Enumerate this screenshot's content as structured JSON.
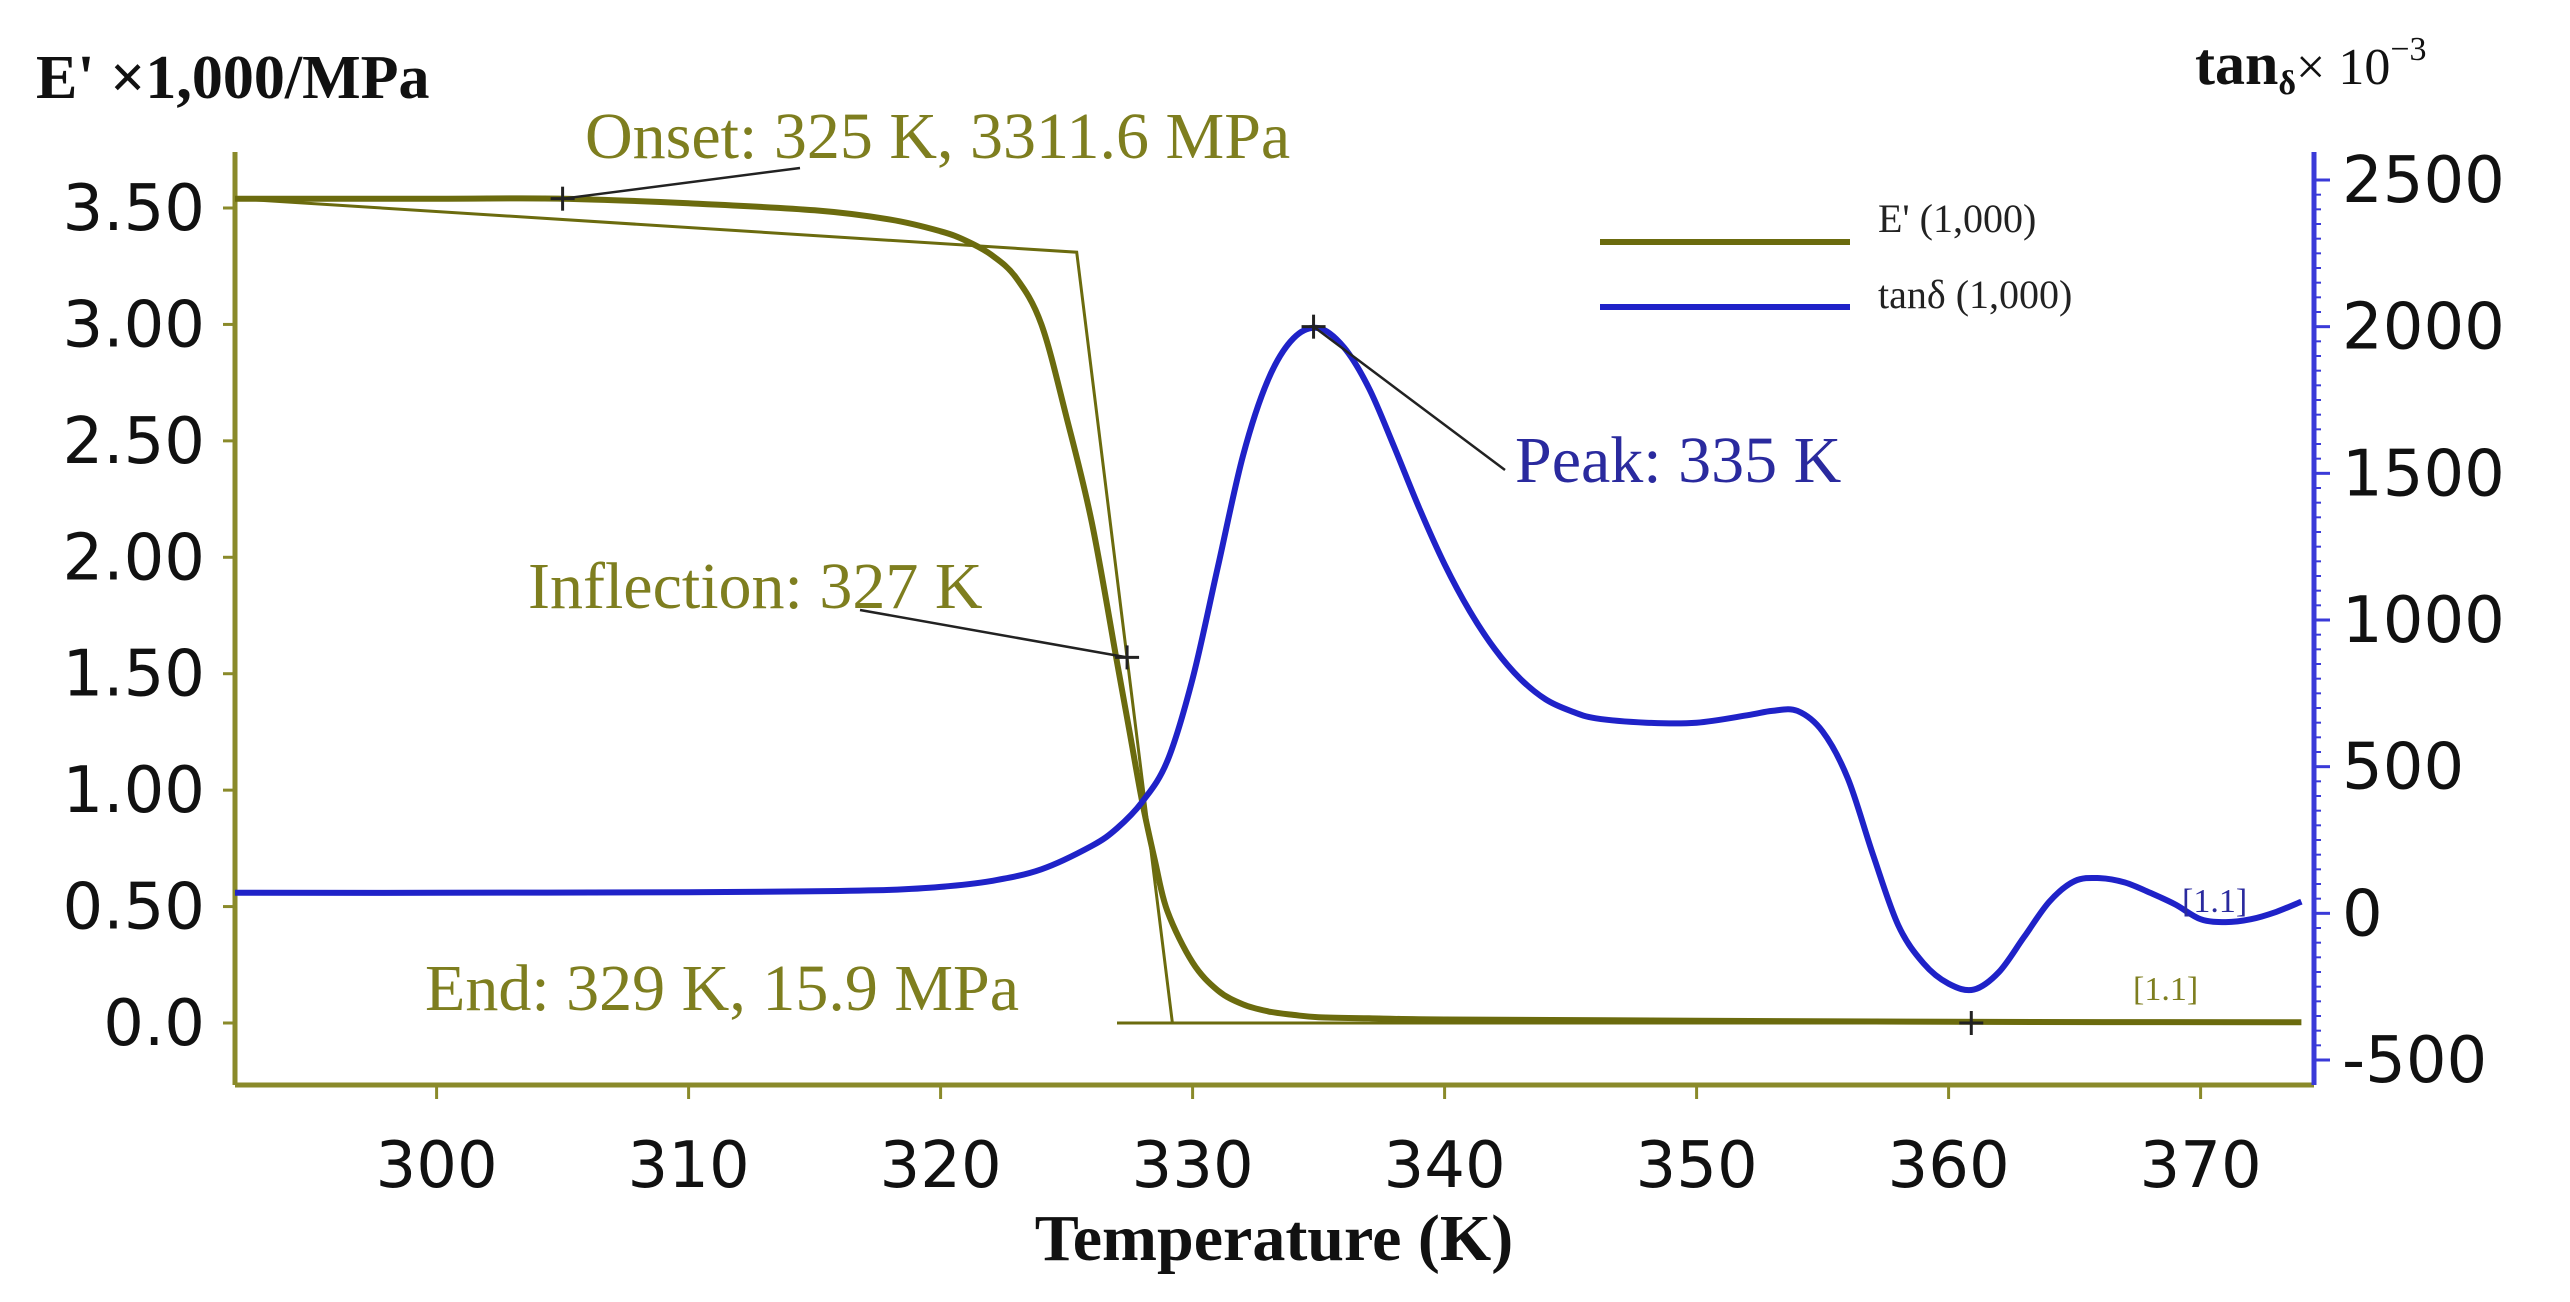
{
  "chart_data": {
    "type": "line",
    "xlabel": "Temperature (K)",
    "ylabel_left": "E' ×1,000/MPa",
    "ylabel_right": "tanδ× 10−3",
    "ylabel_right_base": "tan",
    "ylabel_right_sub": "δ",
    "ylabel_right_mult": "× 10",
    "ylabel_right_exp": "−3",
    "xlim": [
      292,
      374.5
    ],
    "ylim_left": [
      -0.3,
      3.9
    ],
    "ylim_right": [
      -500,
      2500
    ],
    "x_ticks": [
      300,
      310,
      320,
      330,
      340,
      350,
      360,
      370
    ],
    "y_left_ticks": [
      "3.50",
      "3.00",
      "2.50",
      "2.00",
      "1.50",
      "1.00",
      "0.50",
      "0.0"
    ],
    "y_left_tick_values": [
      3.5,
      3.0,
      2.5,
      2.0,
      1.5,
      1.0,
      0.5,
      0.0
    ],
    "y_right_ticks": [
      "2500",
      "2000",
      "1500",
      "1000",
      "500",
      "0",
      "-500"
    ],
    "y_right_tick_values": [
      2500,
      2000,
      1500,
      1000,
      500,
      0,
      -500
    ],
    "colors": {
      "storage": "#6b6b0e",
      "tan": "#1f22c8",
      "left_axis": "#8a8a2a",
      "right_axis": "#3a3ad8",
      "annot_olive": "#7e7e1f",
      "annot_blue": "#2a2a9e",
      "marker": "#222222"
    },
    "series": [
      {
        "name": "E' (1,000)",
        "axis": "left",
        "x": [
          292,
          300,
          305,
          310,
          315,
          318,
          320,
          321,
          322,
          323,
          324,
          325,
          326,
          327,
          327.5,
          328,
          328.5,
          329,
          330,
          331,
          332,
          333,
          334,
          335,
          337,
          340,
          350,
          360,
          374
        ],
        "values": [
          3.54,
          3.54,
          3.54,
          3.52,
          3.49,
          3.45,
          3.4,
          3.36,
          3.3,
          3.2,
          3.0,
          2.6,
          2.15,
          1.55,
          1.25,
          0.95,
          0.7,
          0.48,
          0.26,
          0.14,
          0.08,
          0.05,
          0.035,
          0.025,
          0.02,
          0.015,
          0.01,
          0.005,
          0.003
        ]
      },
      {
        "name": "tanδ (1,000)",
        "axis": "right",
        "x": [
          292,
          300,
          310,
          315,
          318,
          320,
          322,
          324,
          326,
          327,
          328,
          329,
          330,
          331,
          332,
          333,
          334,
          335,
          336,
          337,
          338,
          339,
          340,
          341,
          342,
          343,
          344,
          345,
          346,
          348,
          350,
          352,
          353,
          354,
          355,
          356,
          357,
          358,
          359,
          360,
          361,
          362,
          363,
          364,
          365,
          366,
          367,
          368,
          369,
          370,
          371,
          372,
          373,
          374
        ],
        "values": [
          70,
          70,
          72,
          75,
          80,
          90,
          110,
          150,
          230,
          290,
          380,
          520,
          800,
          1180,
          1560,
          1820,
          1960,
          1995,
          1930,
          1790,
          1590,
          1380,
          1190,
          1030,
          900,
          800,
          730,
          690,
          665,
          650,
          650,
          675,
          690,
          690,
          620,
          460,
          200,
          -40,
          -170,
          -240,
          -260,
          -200,
          -80,
          40,
          110,
          120,
          105,
          70,
          30,
          -20,
          -30,
          -20,
          5,
          40
        ]
      }
    ],
    "legend": {
      "position": "top-right",
      "items": [
        "E' (1,000)",
        "tanδ (1,000)"
      ]
    },
    "annotations": {
      "onset": {
        "text": "Onset: 325 K, 3311.6 MPa",
        "x": 305,
        "y": 3.54
      },
      "inflection": {
        "text": "Inflection: 327 K",
        "x": 327.4,
        "y": 1.57
      },
      "end": {
        "text": "End: 329 K, 15.9 MPa",
        "x": 360.9,
        "y": 0.0
      },
      "peak": {
        "text": "Peak: 335 K",
        "x": 334.8,
        "y": 2000
      },
      "tag_tan": "[1.1]",
      "tag_storage": "[1.1]"
    },
    "tangent_points": [
      {
        "x": 292,
        "y": 3.54
      },
      {
        "x": 325.4,
        "y": 3.31
      },
      {
        "x": 329.2,
        "y": 0.0
      },
      {
        "x": 327,
        "y": 0.0
      }
    ]
  }
}
